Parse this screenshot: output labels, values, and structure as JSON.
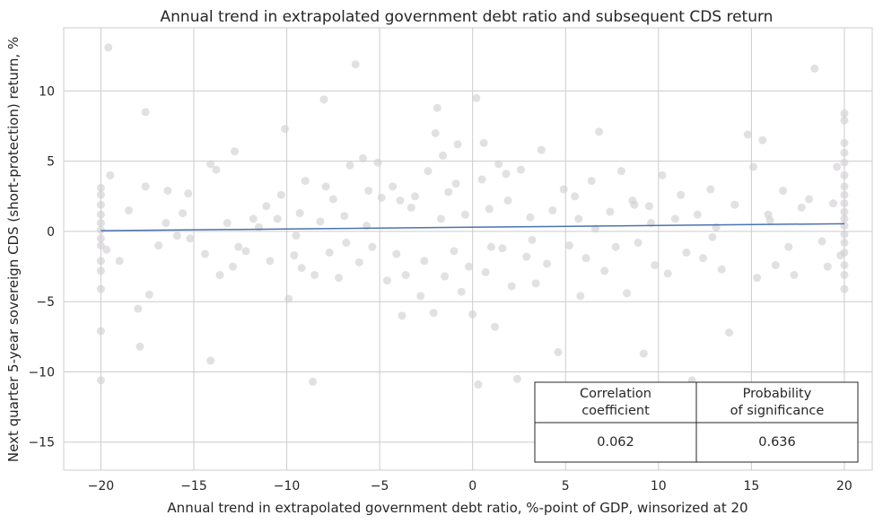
{
  "chart_data": {
    "type": "scatter",
    "title": "Annual trend in extrapolated government debt ratio and subsequent CDS return",
    "xlabel": "Annual trend in extrapolated government debt ratio, %-point of GDP, winsorized at 20",
    "ylabel": "Next quarter 5-year sovereign CDS (short-protection) return, %",
    "xlim": [
      -22,
      21.5
    ],
    "ylim": [
      -17,
      14.5
    ],
    "xticks": [
      -20,
      -15,
      -10,
      -5,
      0,
      5,
      10,
      15,
      20
    ],
    "yticks": [
      -15,
      -10,
      -5,
      0,
      5,
      10
    ],
    "xtick_labels": [
      "−20",
      "−15",
      "−10",
      "−5",
      "0",
      "5",
      "10",
      "15",
      "20"
    ],
    "ytick_labels": [
      "−15",
      "−10",
      "−5",
      "0",
      "5",
      "10"
    ],
    "grid": true,
    "point_color": "#d3d0d3",
    "line_color": "#4c72b0",
    "regression_line": {
      "x": [
        -20,
        20
      ],
      "y": [
        0.05,
        0.55
      ]
    },
    "points": [
      [
        -19.6,
        13.1
      ],
      [
        -17.6,
        8.5
      ],
      [
        -20,
        -10.6
      ],
      [
        -20,
        -7.1
      ],
      [
        -20,
        -4.1
      ],
      [
        -20,
        -2.8
      ],
      [
        -20,
        -2.1
      ],
      [
        -19.7,
        -1.3
      ],
      [
        -20,
        3.1
      ],
      [
        -19.5,
        4.0
      ],
      [
        -19.0,
        -2.1
      ],
      [
        -18.5,
        1.5
      ],
      [
        -18.0,
        -5.5
      ],
      [
        -17.9,
        -8.2
      ],
      [
        -17.4,
        -4.5
      ],
      [
        -17.6,
        3.2
      ],
      [
        -16.9,
        -1.0
      ],
      [
        -16.5,
        0.6
      ],
      [
        -16.4,
        2.9
      ],
      [
        -15.6,
        1.3
      ],
      [
        -15.2,
        -0.5
      ],
      [
        -15.3,
        2.7
      ],
      [
        -14.4,
        -1.6
      ],
      [
        -14.1,
        -9.2
      ],
      [
        -14.1,
        4.8
      ],
      [
        -13.8,
        4.4
      ],
      [
        -13.6,
        -3.1
      ],
      [
        -13.2,
        0.6
      ],
      [
        -12.8,
        5.7
      ],
      [
        -12.6,
        -1.1
      ],
      [
        -12.2,
        -1.4
      ],
      [
        -11.5,
        0.3
      ],
      [
        -11.1,
        1.8
      ],
      [
        -10.9,
        -2.1
      ],
      [
        -10.5,
        0.9
      ],
      [
        -10.3,
        2.6
      ],
      [
        -10.1,
        7.3
      ],
      [
        -9.9,
        -4.8
      ],
      [
        -9.6,
        -1.7
      ],
      [
        -9.3,
        1.3
      ],
      [
        -9.2,
        -2.6
      ],
      [
        -9.0,
        3.6
      ],
      [
        -8.6,
        -10.7
      ],
      [
        -8.5,
        -3.1
      ],
      [
        -8.2,
        0.7
      ],
      [
        -8.0,
        9.4
      ],
      [
        -7.7,
        -1.5
      ],
      [
        -7.5,
        2.3
      ],
      [
        -7.2,
        -3.3
      ],
      [
        -6.9,
        1.1
      ],
      [
        -6.6,
        4.7
      ],
      [
        -6.3,
        11.9
      ],
      [
        -6.1,
        -2.2
      ],
      [
        -5.9,
        5.2
      ],
      [
        -5.7,
        0.4
      ],
      [
        -5.4,
        -1.1
      ],
      [
        -5.1,
        4.9
      ],
      [
        -4.9,
        2.4
      ],
      [
        -4.6,
        -3.5
      ],
      [
        -4.3,
        3.2
      ],
      [
        -4.1,
        -1.6
      ],
      [
        -3.8,
        -6.0
      ],
      [
        -3.6,
        -3.1
      ],
      [
        -3.3,
        1.7
      ],
      [
        -3.1,
        2.5
      ],
      [
        -2.8,
        -4.6
      ],
      [
        -2.6,
        -2.1
      ],
      [
        -2.4,
        4.3
      ],
      [
        -2.1,
        -5.8
      ],
      [
        -1.9,
        8.8
      ],
      [
        -1.7,
        0.9
      ],
      [
        -1.5,
        -3.2
      ],
      [
        -1.3,
        2.8
      ],
      [
        -1.0,
        -1.4
      ],
      [
        -0.8,
        6.2
      ],
      [
        -0.6,
        -4.3
      ],
      [
        -0.4,
        1.2
      ],
      [
        -0.2,
        -2.5
      ],
      [
        0.0,
        -5.9
      ],
      [
        0.2,
        9.5
      ],
      [
        0.3,
        -10.9
      ],
      [
        0.5,
        3.7
      ],
      [
        0.7,
        -2.9
      ],
      [
        0.9,
        1.6
      ],
      [
        1.2,
        -6.8
      ],
      [
        1.4,
        4.8
      ],
      [
        1.6,
        -1.2
      ],
      [
        1.9,
        2.2
      ],
      [
        2.1,
        -3.9
      ],
      [
        2.4,
        -10.5
      ],
      [
        2.6,
        4.4
      ],
      [
        2.9,
        -1.8
      ],
      [
        3.1,
        1.0
      ],
      [
        3.4,
        -3.7
      ],
      [
        3.7,
        5.8
      ],
      [
        4.0,
        -2.3
      ],
      [
        4.3,
        1.5
      ],
      [
        4.6,
        -8.6
      ],
      [
        4.9,
        3.0
      ],
      [
        5.2,
        -1.0
      ],
      [
        5.5,
        2.5
      ],
      [
        5.8,
        -4.6
      ],
      [
        6.1,
        -1.9
      ],
      [
        6.4,
        3.6
      ],
      [
        6.8,
        7.1
      ],
      [
        7.1,
        -2.8
      ],
      [
        7.4,
        1.4
      ],
      [
        7.7,
        -1.1
      ],
      [
        8.0,
        4.3
      ],
      [
        8.3,
        -4.4
      ],
      [
        8.6,
        2.2
      ],
      [
        8.9,
        -0.8
      ],
      [
        9.2,
        -8.7
      ],
      [
        9.5,
        1.8
      ],
      [
        9.8,
        -2.4
      ],
      [
        10.2,
        4.0
      ],
      [
        10.5,
        -3.0
      ],
      [
        10.9,
        0.9
      ],
      [
        11.2,
        2.6
      ],
      [
        11.5,
        -1.5
      ],
      [
        11.8,
        -10.6
      ],
      [
        12.1,
        1.2
      ],
      [
        12.4,
        -1.9
      ],
      [
        12.8,
        3.0
      ],
      [
        13.1,
        0.3
      ],
      [
        13.4,
        -2.7
      ],
      [
        13.8,
        -7.2
      ],
      [
        14.1,
        1.9
      ],
      [
        14.4,
        -11.1
      ],
      [
        14.8,
        6.9
      ],
      [
        15.1,
        4.6
      ],
      [
        15.3,
        -3.3
      ],
      [
        15.6,
        6.5
      ],
      [
        16.0,
        0.8
      ],
      [
        16.3,
        -2.4
      ],
      [
        16.7,
        2.9
      ],
      [
        17.0,
        -1.1
      ],
      [
        17.3,
        -3.1
      ],
      [
        17.7,
        1.7
      ],
      [
        18.1,
        2.3
      ],
      [
        18.4,
        11.6
      ],
      [
        18.8,
        -0.7
      ],
      [
        19.1,
        -2.5
      ],
      [
        19.4,
        2.0
      ],
      [
        19.6,
        4.6
      ],
      [
        19.8,
        -1.7
      ],
      [
        20,
        8.4
      ],
      [
        20,
        7.9
      ],
      [
        20,
        6.3
      ],
      [
        20,
        5.6
      ],
      [
        20,
        4.9
      ],
      [
        20,
        4.0
      ],
      [
        20,
        3.2
      ],
      [
        20,
        2.6
      ],
      [
        20,
        2.0
      ],
      [
        20,
        1.4
      ],
      [
        20,
        0.9
      ],
      [
        20,
        0.4
      ],
      [
        20,
        -0.2
      ],
      [
        20,
        -0.8
      ],
      [
        20,
        -1.5
      ],
      [
        20,
        -2.4
      ],
      [
        20,
        -3.1
      ],
      [
        20,
        -4.1
      ],
      [
        -20,
        2.6
      ],
      [
        -20,
        1.9
      ],
      [
        -20,
        1.2
      ],
      [
        -20,
        0.6
      ],
      [
        -20,
        0.1
      ],
      [
        -20,
        -0.5
      ],
      [
        -20,
        -1.0
      ],
      [
        -2.0,
        7.0
      ],
      [
        -1.6,
        5.4
      ],
      [
        -0.9,
        3.4
      ],
      [
        0.6,
        6.3
      ],
      [
        1.8,
        4.1
      ],
      [
        -5.6,
        2.9
      ],
      [
        -7.9,
        3.2
      ],
      [
        -11.8,
        0.9
      ],
      [
        -15.9,
        -0.3
      ],
      [
        6.6,
        0.2
      ],
      [
        9.6,
        0.6
      ],
      [
        12.9,
        -0.4
      ],
      [
        15.9,
        1.2
      ],
      [
        -3.9,
        2.2
      ],
      [
        3.2,
        -0.6
      ],
      [
        -6.8,
        -0.8
      ],
      [
        1.0,
        -1.1
      ],
      [
        8.7,
        1.9
      ],
      [
        -12.9,
        -2.5
      ],
      [
        -9.5,
        -0.3
      ],
      [
        5.7,
        0.9
      ]
    ],
    "table": {
      "headers": [
        [
          "Correlation",
          "coefficient"
        ],
        [
          "Probability",
          "of significance"
        ]
      ],
      "values": [
        "0.062",
        "0.636"
      ]
    }
  }
}
